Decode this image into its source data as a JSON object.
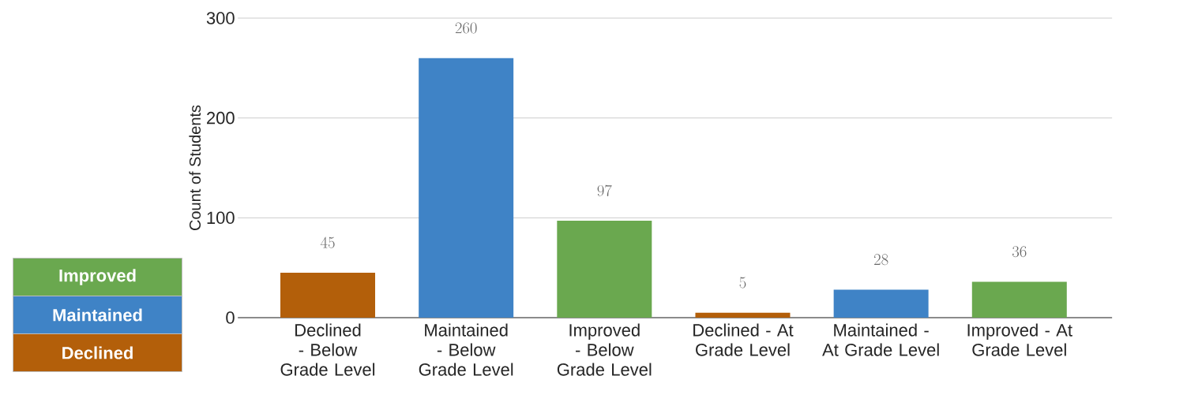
{
  "chart_data": {
    "type": "bar",
    "ylabel": "Count of Students",
    "categories": [
      "Declined - Below Grade Level",
      "Maintained - Below Grade Level",
      "Improved - Below Grade Level",
      "Declined - At Grade Level",
      "Maintained - At Grade Level",
      "Improved - At Grade Level"
    ],
    "series": [
      {
        "name": "Improved",
        "color": "#6aa84f",
        "values": [
          null,
          null,
          97,
          null,
          null,
          36
        ]
      },
      {
        "name": "Maintained",
        "color": "#3f83c6",
        "values": [
          null,
          260,
          null,
          null,
          28,
          null
        ]
      },
      {
        "name": "Declined",
        "color": "#b35f0a",
        "values": [
          45,
          null,
          null,
          5,
          null,
          null
        ]
      }
    ],
    "ylim": [
      0,
      300
    ],
    "yticks": [
      0,
      100,
      200,
      300
    ],
    "grid": "y",
    "legend": "left",
    "data_labels": true
  }
}
